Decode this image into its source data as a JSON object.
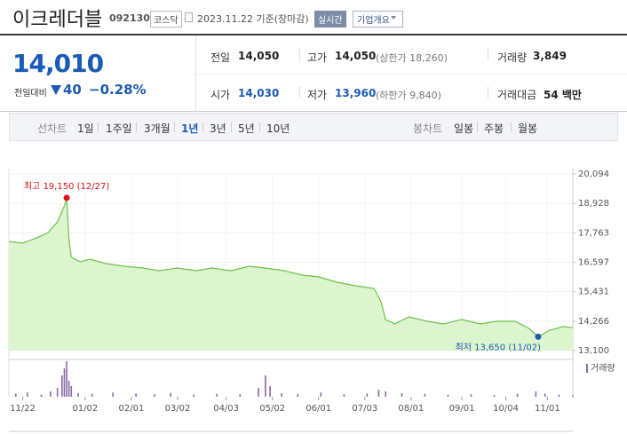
{
  "header": {
    "title": "이크레더블",
    "code": "092130",
    "market": "코스닥",
    "date": "2023.11.22 기준(장마감)",
    "realtime": "실시간",
    "company_info": "기업개요"
  },
  "quote": {
    "price": "14,010",
    "change_label": "전일대비",
    "change": "40",
    "change_pct": "−0.28%"
  },
  "stats": [
    [
      {
        "label": "전일",
        "value": "14,050"
      },
      {
        "label": "고가",
        "value": "14,050",
        "extra": "(상한가 18,260)"
      },
      {
        "label": "거래량",
        "value": "3,849"
      }
    ],
    [
      {
        "label": "시가",
        "value": "14,030"
      },
      {
        "label": "저가",
        "value": "13,960",
        "extra": "(하한가 9,840)"
      },
      {
        "label": "거래대금",
        "value": "54 백만"
      }
    ]
  ],
  "tabs": {
    "line_label": "선차트",
    "line_tabs": [
      "1일",
      "1주일",
      "3개월",
      "1년",
      "3년",
      "5년",
      "10년"
    ],
    "candle_label": "봉차트",
    "candle_tabs": [
      "일봉",
      "주봉",
      "월봉"
    ]
  },
  "chart_data": {
    "type": "line",
    "color": "#6cc24a",
    "fill": "#dcf5cf",
    "x": [
      0,
      6,
      12,
      17,
      21,
      24,
      25,
      26,
      27,
      31,
      35,
      42,
      50,
      58,
      65,
      73,
      81,
      88,
      96,
      104,
      111,
      119,
      127,
      134,
      142,
      150,
      158,
      161,
      163,
      167,
      173,
      181,
      188,
      196,
      204,
      211,
      219,
      225,
      229,
      234,
      240,
      244
    ],
    "values": [
      17423,
      17352,
      17563,
      17774,
      18196,
      18829,
      19150,
      17493,
      16790,
      16614,
      16720,
      16544,
      16438,
      16368,
      16263,
      16368,
      16263,
      16368,
      16263,
      16438,
      16368,
      16263,
      16087,
      16017,
      15806,
      15665,
      15560,
      15032,
      14329,
      14154,
      14435,
      14259,
      14154,
      14329,
      14154,
      14259,
      14259,
      13978,
      13650,
      13908,
      14048,
      14010
    ],
    "xlim": [
      0,
      244
    ],
    "xticks": [
      {
        "value": 6,
        "label": "11/22"
      },
      {
        "value": 33,
        "label": "01/02"
      },
      {
        "value": 53,
        "label": "02/01"
      },
      {
        "value": 73,
        "label": "03/02"
      },
      {
        "value": 94,
        "label": "04/03"
      },
      {
        "value": 114,
        "label": "05/02"
      },
      {
        "value": 134,
        "label": "06/01"
      },
      {
        "value": 154,
        "label": "07/03"
      },
      {
        "value": 174,
        "label": "08/01"
      },
      {
        "value": 196,
        "label": "09/01"
      },
      {
        "value": 215,
        "label": "10/04"
      },
      {
        "value": 233,
        "label": "11/01"
      }
    ],
    "ylim": [
      13100,
      20094
    ],
    "yticks": [
      {
        "value": 20094,
        "label": "20,094"
      },
      {
        "value": 18928,
        "label": "18,928"
      },
      {
        "value": 17763,
        "label": "17,763"
      },
      {
        "value": 16597,
        "label": "16,597"
      },
      {
        "value": 15431,
        "label": "15,431"
      },
      {
        "value": 14266,
        "label": "14,266"
      },
      {
        "value": 13100,
        "label": "13,100"
      }
    ],
    "grid": true,
    "annotations": [
      {
        "text": "최고 19,150 (12/27)",
        "index": 6,
        "color": "#e0101a"
      },
      {
        "text": "최저 13,650 (11/02)",
        "index": 38,
        "color": "#1a5bb5"
      }
    ],
    "volume": {
      "label": "거래량",
      "color": "#8a6aa8",
      "x": [
        3,
        8,
        14,
        18,
        21,
        23,
        24,
        25,
        26,
        27,
        30,
        36,
        45,
        55,
        63,
        70,
        80,
        90,
        100,
        108,
        111,
        113,
        118,
        125,
        135,
        145,
        155,
        160,
        163,
        170,
        180,
        190,
        200,
        210,
        220,
        228,
        232,
        238,
        244
      ],
      "values": [
        8000,
        12000,
        6000,
        15000,
        25000,
        60000,
        80000,
        100000,
        45000,
        30000,
        10000,
        8000,
        12000,
        9000,
        7000,
        11000,
        6000,
        8000,
        7000,
        25000,
        60000,
        30000,
        10000,
        8000,
        12000,
        7000,
        9000,
        20000,
        15000,
        10000,
        8000,
        6000,
        7000,
        5000,
        8000,
        15000,
        9000,
        6000,
        3849
      ],
      "ylim": [
        0,
        100000
      ]
    }
  }
}
